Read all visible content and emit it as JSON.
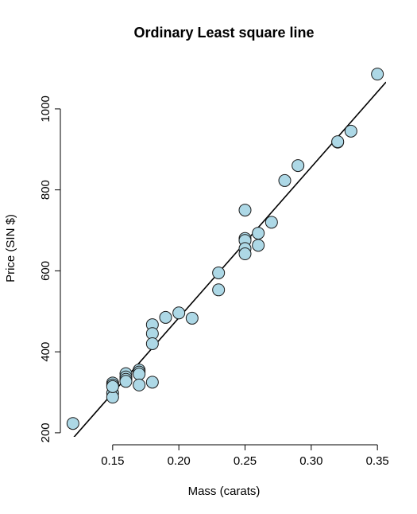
{
  "chart_data": {
    "type": "scatter",
    "title": "Ordinary Least square line",
    "xlabel": "Mass (carats)",
    "ylabel": "Price (SIN $)",
    "xlim": [
      0.1135,
      0.3565
    ],
    "ylim": [
      190,
      1100
    ],
    "xticks": [
      0.15,
      0.2,
      0.25,
      0.3,
      0.35
    ],
    "xtick_labels": [
      "0.15",
      "0.20",
      "0.25",
      "0.30",
      "0.35"
    ],
    "yticks": [
      200,
      400,
      600,
      800,
      1000
    ],
    "ytick_labels": [
      "200",
      "400",
      "600",
      "800",
      "1000"
    ],
    "grid": false,
    "point_color": "#add8e6",
    "points": [
      {
        "x": 0.12,
        "y": 223
      },
      {
        "x": 0.15,
        "y": 323
      },
      {
        "x": 0.15,
        "y": 318
      },
      {
        "x": 0.15,
        "y": 298
      },
      {
        "x": 0.15,
        "y": 288
      },
      {
        "x": 0.15,
        "y": 314
      },
      {
        "x": 0.16,
        "y": 346
      },
      {
        "x": 0.16,
        "y": 338
      },
      {
        "x": 0.16,
        "y": 332
      },
      {
        "x": 0.16,
        "y": 327
      },
      {
        "x": 0.17,
        "y": 355
      },
      {
        "x": 0.17,
        "y": 350
      },
      {
        "x": 0.17,
        "y": 345
      },
      {
        "x": 0.17,
        "y": 318
      },
      {
        "x": 0.18,
        "y": 467
      },
      {
        "x": 0.18,
        "y": 445
      },
      {
        "x": 0.18,
        "y": 420
      },
      {
        "x": 0.18,
        "y": 325
      },
      {
        "x": 0.19,
        "y": 485
      },
      {
        "x": 0.2,
        "y": 496
      },
      {
        "x": 0.21,
        "y": 483
      },
      {
        "x": 0.23,
        "y": 595
      },
      {
        "x": 0.23,
        "y": 553
      },
      {
        "x": 0.25,
        "y": 750
      },
      {
        "x": 0.25,
        "y": 680
      },
      {
        "x": 0.25,
        "y": 675
      },
      {
        "x": 0.25,
        "y": 655
      },
      {
        "x": 0.25,
        "y": 642
      },
      {
        "x": 0.26,
        "y": 693
      },
      {
        "x": 0.26,
        "y": 663
      },
      {
        "x": 0.27,
        "y": 720
      },
      {
        "x": 0.28,
        "y": 823
      },
      {
        "x": 0.29,
        "y": 860
      },
      {
        "x": 0.32,
        "y": 918
      },
      {
        "x": 0.32,
        "y": 919
      },
      {
        "x": 0.33,
        "y": 945
      },
      {
        "x": 0.35,
        "y": 1086
      }
    ],
    "fit_line": {
      "intercept": -260,
      "slope": 3720
    }
  }
}
